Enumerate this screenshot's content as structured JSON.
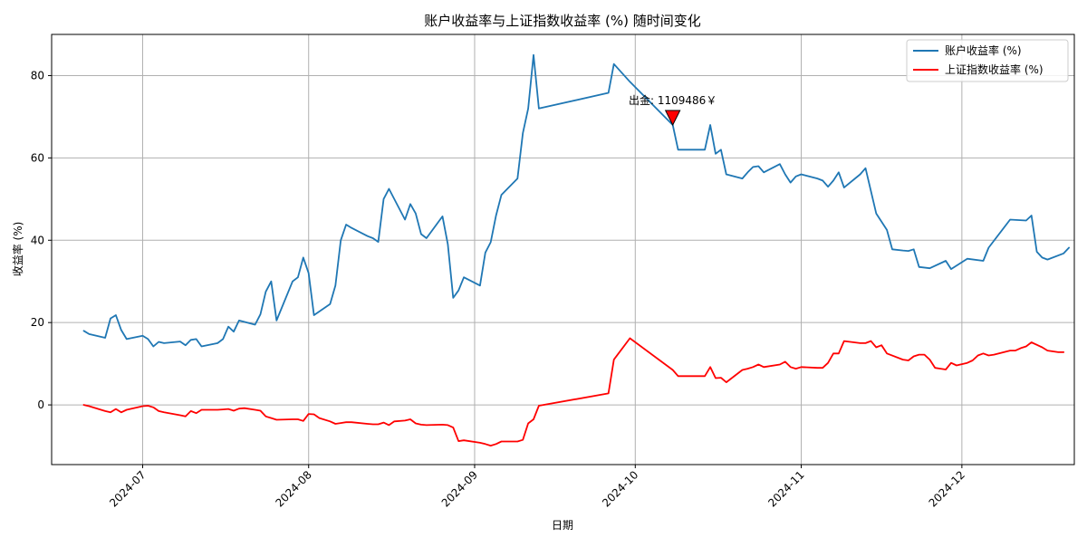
{
  "chart_data": {
    "type": "line",
    "title": "账户收益率与上证指数收益率 (%) 随时间变化",
    "xlabel": "日期",
    "ylabel": "收益率 (%)",
    "x_ticks": [
      "2024-07",
      "2024-08",
      "2024-09",
      "2024-10",
      "2024-11",
      "2024-12"
    ],
    "y_ticks": [
      0,
      20,
      40,
      60,
      80
    ],
    "xlim": [
      "2024-06-14",
      "2024-12-22"
    ],
    "ylim": [
      -14.5,
      90
    ],
    "grid": true,
    "legend_position": "top-right",
    "series": [
      {
        "name": "账户收益率 (%)",
        "color": "#1f77b4",
        "points": [
          [
            "2024-06-20",
            18.0
          ],
          [
            "2024-06-21",
            17.2
          ],
          [
            "2024-06-24",
            16.3
          ],
          [
            "2024-06-25",
            21.0
          ],
          [
            "2024-06-26",
            21.8
          ],
          [
            "2024-06-27",
            18.2
          ],
          [
            "2024-06-28",
            16.0
          ],
          [
            "2024-07-01",
            16.8
          ],
          [
            "2024-07-02",
            16.0
          ],
          [
            "2024-07-03",
            14.2
          ],
          [
            "2024-07-04",
            15.3
          ],
          [
            "2024-07-05",
            15.0
          ],
          [
            "2024-07-08",
            15.4
          ],
          [
            "2024-07-09",
            14.5
          ],
          [
            "2024-07-10",
            15.8
          ],
          [
            "2024-07-11",
            16.0
          ],
          [
            "2024-07-12",
            14.2
          ],
          [
            "2024-07-15",
            15.0
          ],
          [
            "2024-07-16",
            16.0
          ],
          [
            "2024-07-17",
            19.0
          ],
          [
            "2024-07-18",
            17.8
          ],
          [
            "2024-07-19",
            20.5
          ],
          [
            "2024-07-22",
            19.5
          ],
          [
            "2024-07-23",
            22.0
          ],
          [
            "2024-07-24",
            27.5
          ],
          [
            "2024-07-25",
            30.0
          ],
          [
            "2024-07-26",
            20.5
          ],
          [
            "2024-07-29",
            30.0
          ],
          [
            "2024-07-30",
            31.0
          ],
          [
            "2024-07-31",
            35.8
          ],
          [
            "2024-08-01",
            32.0
          ],
          [
            "2024-08-02",
            21.8
          ],
          [
            "2024-08-05",
            24.5
          ],
          [
            "2024-08-06",
            29.0
          ],
          [
            "2024-08-07",
            40.0
          ],
          [
            "2024-08-08",
            43.8
          ],
          [
            "2024-08-09",
            43.0
          ],
          [
            "2024-08-12",
            41.0
          ],
          [
            "2024-08-13",
            40.5
          ],
          [
            "2024-08-14",
            39.6
          ],
          [
            "2024-08-15",
            50.0
          ],
          [
            "2024-08-16",
            52.5
          ],
          [
            "2024-08-19",
            45.0
          ],
          [
            "2024-08-20",
            48.8
          ],
          [
            "2024-08-21",
            46.5
          ],
          [
            "2024-08-22",
            41.5
          ],
          [
            "2024-08-23",
            40.5
          ],
          [
            "2024-08-26",
            45.8
          ],
          [
            "2024-08-27",
            39.0
          ],
          [
            "2024-08-28",
            26.0
          ],
          [
            "2024-08-29",
            27.8
          ],
          [
            "2024-08-30",
            31.0
          ],
          [
            "2024-09-02",
            29.0
          ],
          [
            "2024-09-03",
            37.0
          ],
          [
            "2024-09-04",
            39.5
          ],
          [
            "2024-09-05",
            46.0
          ],
          [
            "2024-09-06",
            51.0
          ],
          [
            "2024-09-09",
            55.0
          ],
          [
            "2024-09-10",
            66.0
          ],
          [
            "2024-09-11",
            72.0
          ],
          [
            "2024-09-12",
            85.0
          ],
          [
            "2024-09-13",
            72.0
          ],
          [
            "2024-09-26",
            75.8
          ],
          [
            "2024-09-27",
            82.8
          ],
          [
            "2024-09-30",
            78.5
          ],
          [
            "2024-10-08",
            68.0
          ],
          [
            "2024-10-09",
            62.0
          ],
          [
            "2024-10-11",
            62.0
          ],
          [
            "2024-10-14",
            62.0
          ],
          [
            "2024-10-15",
            68.0
          ],
          [
            "2024-10-16",
            61.0
          ],
          [
            "2024-10-17",
            62.0
          ],
          [
            "2024-10-18",
            56.0
          ],
          [
            "2024-10-21",
            55.0
          ],
          [
            "2024-10-22",
            56.5
          ],
          [
            "2024-10-23",
            57.8
          ],
          [
            "2024-10-24",
            58.0
          ],
          [
            "2024-10-25",
            56.5
          ],
          [
            "2024-10-28",
            58.5
          ],
          [
            "2024-10-29",
            56.0
          ],
          [
            "2024-10-30",
            54.0
          ],
          [
            "2024-10-31",
            55.5
          ],
          [
            "2024-11-01",
            56.0
          ],
          [
            "2024-11-04",
            55.0
          ],
          [
            "2024-11-05",
            54.5
          ],
          [
            "2024-11-06",
            53.0
          ],
          [
            "2024-11-07",
            54.5
          ],
          [
            "2024-11-08",
            56.5
          ],
          [
            "2024-11-09",
            52.8
          ],
          [
            "2024-11-12",
            56.0
          ],
          [
            "2024-11-13",
            57.5
          ],
          [
            "2024-11-14",
            52.0
          ],
          [
            "2024-11-15",
            46.5
          ],
          [
            "2024-11-17",
            42.5
          ],
          [
            "2024-11-18",
            37.8
          ],
          [
            "2024-11-20",
            37.5
          ],
          [
            "2024-11-21",
            37.4
          ],
          [
            "2024-11-22",
            37.8
          ],
          [
            "2024-11-23",
            33.5
          ],
          [
            "2024-11-25",
            33.2
          ],
          [
            "2024-11-28",
            35.0
          ],
          [
            "2024-11-29",
            33.0
          ],
          [
            "2024-12-02",
            35.5
          ],
          [
            "2024-12-05",
            35.0
          ],
          [
            "2024-12-06",
            38.2
          ],
          [
            "2024-12-10",
            45.0
          ],
          [
            "2024-12-13",
            44.8
          ],
          [
            "2024-12-14",
            46.0
          ],
          [
            "2024-12-15",
            37.2
          ],
          [
            "2024-12-16",
            35.8
          ],
          [
            "2024-12-17",
            35.3
          ],
          [
            "2024-12-20",
            36.8
          ],
          [
            "2024-12-21",
            38.2
          ]
        ]
      },
      {
        "name": "上证指数收益率 (%)",
        "color": "#ff0000",
        "points": [
          [
            "2024-06-20",
            0.0
          ],
          [
            "2024-06-21",
            -0.3
          ],
          [
            "2024-06-24",
            -1.5
          ],
          [
            "2024-06-25",
            -1.8
          ],
          [
            "2024-06-26",
            -1.0
          ],
          [
            "2024-06-27",
            -1.8
          ],
          [
            "2024-06-28",
            -1.2
          ],
          [
            "2024-07-01",
            -0.3
          ],
          [
            "2024-07-02",
            -0.2
          ],
          [
            "2024-07-03",
            -0.6
          ],
          [
            "2024-07-04",
            -1.5
          ],
          [
            "2024-07-05",
            -1.8
          ],
          [
            "2024-07-08",
            -2.5
          ],
          [
            "2024-07-09",
            -2.8
          ],
          [
            "2024-07-10",
            -1.5
          ],
          [
            "2024-07-11",
            -2.0
          ],
          [
            "2024-07-12",
            -1.2
          ],
          [
            "2024-07-15",
            -1.2
          ],
          [
            "2024-07-16",
            -1.1
          ],
          [
            "2024-07-17",
            -1.0
          ],
          [
            "2024-07-18",
            -1.4
          ],
          [
            "2024-07-19",
            -0.9
          ],
          [
            "2024-07-20",
            -0.8
          ],
          [
            "2024-07-22",
            -1.2
          ],
          [
            "2024-07-23",
            -1.4
          ],
          [
            "2024-07-24",
            -2.8
          ],
          [
            "2024-07-25",
            -3.2
          ],
          [
            "2024-07-26",
            -3.6
          ],
          [
            "2024-07-29",
            -3.5
          ],
          [
            "2024-07-30",
            -3.5
          ],
          [
            "2024-07-31",
            -3.9
          ],
          [
            "2024-08-01",
            -2.2
          ],
          [
            "2024-08-02",
            -2.3
          ],
          [
            "2024-08-03",
            -3.2
          ],
          [
            "2024-08-05",
            -4.0
          ],
          [
            "2024-08-06",
            -4.6
          ],
          [
            "2024-08-07",
            -4.4
          ],
          [
            "2024-08-08",
            -4.2
          ],
          [
            "2024-08-09",
            -4.2
          ],
          [
            "2024-08-12",
            -4.6
          ],
          [
            "2024-08-13",
            -4.7
          ],
          [
            "2024-08-14",
            -4.7
          ],
          [
            "2024-08-15",
            -4.3
          ],
          [
            "2024-08-16",
            -4.9
          ],
          [
            "2024-08-17",
            -4.0
          ],
          [
            "2024-08-19",
            -3.8
          ],
          [
            "2024-08-20",
            -3.5
          ],
          [
            "2024-08-21",
            -4.5
          ],
          [
            "2024-08-22",
            -4.8
          ],
          [
            "2024-08-23",
            -4.9
          ],
          [
            "2024-08-26",
            -4.8
          ],
          [
            "2024-08-27",
            -4.9
          ],
          [
            "2024-08-28",
            -5.5
          ],
          [
            "2024-08-29",
            -8.8
          ],
          [
            "2024-08-30",
            -8.6
          ],
          [
            "2024-09-02",
            -9.2
          ],
          [
            "2024-09-03",
            -9.5
          ],
          [
            "2024-09-04",
            -9.9
          ],
          [
            "2024-09-05",
            -9.5
          ],
          [
            "2024-09-06",
            -8.9
          ],
          [
            "2024-09-09",
            -8.9
          ],
          [
            "2024-09-10",
            -8.5
          ],
          [
            "2024-09-11",
            -4.5
          ],
          [
            "2024-09-12",
            -3.5
          ],
          [
            "2024-09-13",
            -0.2
          ],
          [
            "2024-09-26",
            2.8
          ],
          [
            "2024-09-27",
            11.0
          ],
          [
            "2024-09-30",
            16.2
          ],
          [
            "2024-10-08",
            8.5
          ],
          [
            "2024-10-09",
            7.0
          ],
          [
            "2024-10-10",
            7.0
          ],
          [
            "2024-10-11",
            7.0
          ],
          [
            "2024-10-14",
            7.0
          ],
          [
            "2024-10-15",
            9.2
          ],
          [
            "2024-10-16",
            6.5
          ],
          [
            "2024-10-17",
            6.6
          ],
          [
            "2024-10-18",
            5.5
          ],
          [
            "2024-10-21",
            8.5
          ],
          [
            "2024-10-22",
            8.8
          ],
          [
            "2024-10-23",
            9.2
          ],
          [
            "2024-10-24",
            9.8
          ],
          [
            "2024-10-25",
            9.2
          ],
          [
            "2024-10-28",
            9.8
          ],
          [
            "2024-10-29",
            10.5
          ],
          [
            "2024-10-30",
            9.2
          ],
          [
            "2024-10-31",
            8.8
          ],
          [
            "2024-11-01",
            9.2
          ],
          [
            "2024-11-04",
            9.0
          ],
          [
            "2024-11-05",
            9.0
          ],
          [
            "2024-11-06",
            10.2
          ],
          [
            "2024-11-07",
            12.5
          ],
          [
            "2024-11-08",
            12.5
          ],
          [
            "2024-11-09",
            15.5
          ],
          [
            "2024-11-12",
            15.0
          ],
          [
            "2024-11-13",
            15.0
          ],
          [
            "2024-11-14",
            15.5
          ],
          [
            "2024-11-15",
            14.0
          ],
          [
            "2024-11-16",
            14.5
          ],
          [
            "2024-11-17",
            12.5
          ],
          [
            "2024-11-20",
            11.0
          ],
          [
            "2024-11-21",
            10.8
          ],
          [
            "2024-11-22",
            11.8
          ],
          [
            "2024-11-23",
            12.2
          ],
          [
            "2024-11-24",
            12.2
          ],
          [
            "2024-11-25",
            11.0
          ],
          [
            "2024-11-26",
            9.0
          ],
          [
            "2024-11-27",
            8.8
          ],
          [
            "2024-11-28",
            8.6
          ],
          [
            "2024-11-29",
            10.2
          ],
          [
            "2024-11-30",
            9.6
          ],
          [
            "2024-12-02",
            10.2
          ],
          [
            "2024-12-03",
            10.8
          ],
          [
            "2024-12-04",
            12.0
          ],
          [
            "2024-12-05",
            12.5
          ],
          [
            "2024-12-06",
            12.0
          ],
          [
            "2024-12-07",
            12.2
          ],
          [
            "2024-12-10",
            13.2
          ],
          [
            "2024-12-11",
            13.2
          ],
          [
            "2024-12-12",
            13.8
          ],
          [
            "2024-12-13",
            14.2
          ],
          [
            "2024-12-14",
            15.2
          ],
          [
            "2024-12-16",
            14.0
          ],
          [
            "2024-12-17",
            13.2
          ],
          [
            "2024-12-19",
            12.8
          ],
          [
            "2024-12-20",
            12.8
          ]
        ]
      }
    ],
    "annotations": [
      {
        "text": "出金: 1109486￥",
        "x": "2024-10-08",
        "y": 68.0,
        "marker": "triangle-down",
        "marker_color": "#ff0000"
      }
    ]
  }
}
